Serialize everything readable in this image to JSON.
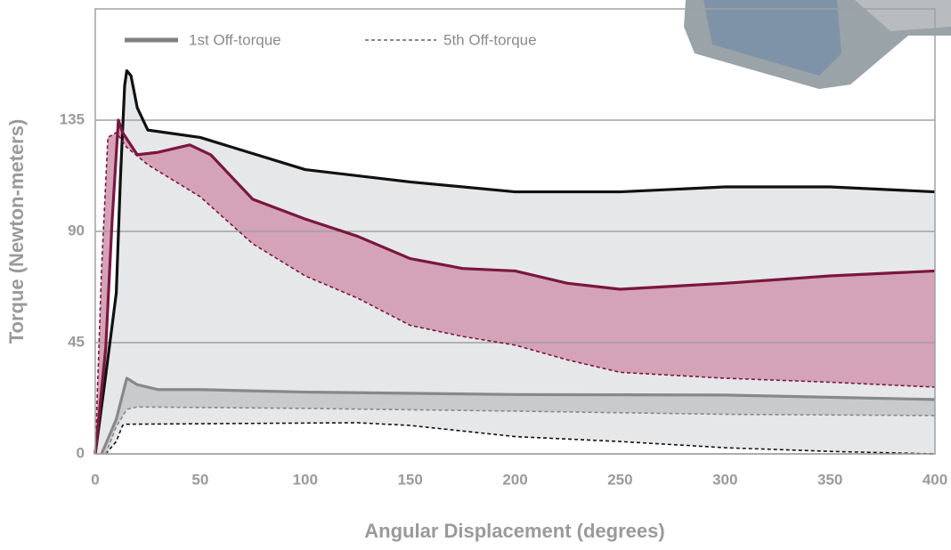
{
  "chart_data": {
    "type": "line",
    "x_label": "Angular Displacement (degrees)",
    "y_label": "Torque (Newton-meters)",
    "xlim": [
      0,
      400
    ],
    "ylim": [
      0,
      180
    ],
    "xticks": [
      0,
      50,
      100,
      150,
      200,
      250,
      300,
      350,
      400
    ],
    "yticks": [
      0,
      45,
      90,
      135
    ],
    "grid": true,
    "legend_position": "top-left",
    "legend": [
      {
        "label": "1st Off-torque",
        "style": "solid",
        "color": "#808080"
      },
      {
        "label": "5th Off-torque",
        "style": "dashed",
        "color": "#606060"
      }
    ],
    "series": [
      {
        "color": "#111111",
        "style": "solid",
        "band_color": "#e6e7e9",
        "x": [
          0,
          5,
          10,
          12,
          14,
          15,
          17,
          20,
          25,
          50,
          100,
          150,
          200,
          250,
          300,
          350,
          400
        ],
        "values": [
          0,
          32,
          65,
          112,
          149,
          155,
          153,
          140,
          131,
          128,
          115,
          110,
          106,
          106,
          108,
          108,
          106
        ]
      },
      {
        "color": "#111111",
        "style": "dashed",
        "x": [
          5,
          10,
          13,
          15,
          125,
          150,
          200,
          250,
          300,
          350,
          400
        ],
        "values": [
          0,
          5,
          11.5,
          12,
          12.6,
          11.5,
          7,
          5,
          2.5,
          1,
          0
        ]
      },
      {
        "color": "#7a1640",
        "style": "solid",
        "band_color": "#d4a3b8",
        "x": [
          0,
          5,
          8,
          11,
          13,
          20,
          30,
          45,
          55,
          75,
          100,
          125,
          150,
          175,
          200,
          225,
          250,
          300,
          350,
          400
        ],
        "values": [
          0,
          43,
          94,
          135,
          130,
          121,
          122,
          125,
          121,
          103,
          95,
          88,
          79,
          75,
          74,
          69,
          66.6,
          69,
          72,
          74
        ]
      },
      {
        "color": "#7a1640",
        "style": "dashed",
        "x": [
          0,
          3,
          6,
          10,
          15,
          25,
          50,
          75,
          100,
          125,
          150,
          175,
          200,
          225,
          250,
          300,
          350,
          400
        ],
        "values": [
          0,
          75,
          128,
          130,
          124,
          117,
          104,
          85,
          72,
          63,
          52,
          47.5,
          44,
          38,
          33,
          30.6,
          29,
          27
        ]
      },
      {
        "color": "#888888",
        "style": "solid",
        "band_color": "#c9cacc",
        "x": [
          3,
          10,
          15,
          20,
          30,
          50,
          100,
          200,
          300,
          400
        ],
        "values": [
          0,
          14,
          30.6,
          28,
          26,
          26,
          25,
          24,
          23.8,
          22
        ]
      },
      {
        "color": "#888888",
        "style": "dashed",
        "x": [
          5,
          10,
          15,
          20,
          100,
          200,
          300,
          400
        ],
        "values": [
          0,
          11,
          18,
          19,
          18.4,
          17.3,
          16,
          15.5
        ]
      }
    ]
  }
}
